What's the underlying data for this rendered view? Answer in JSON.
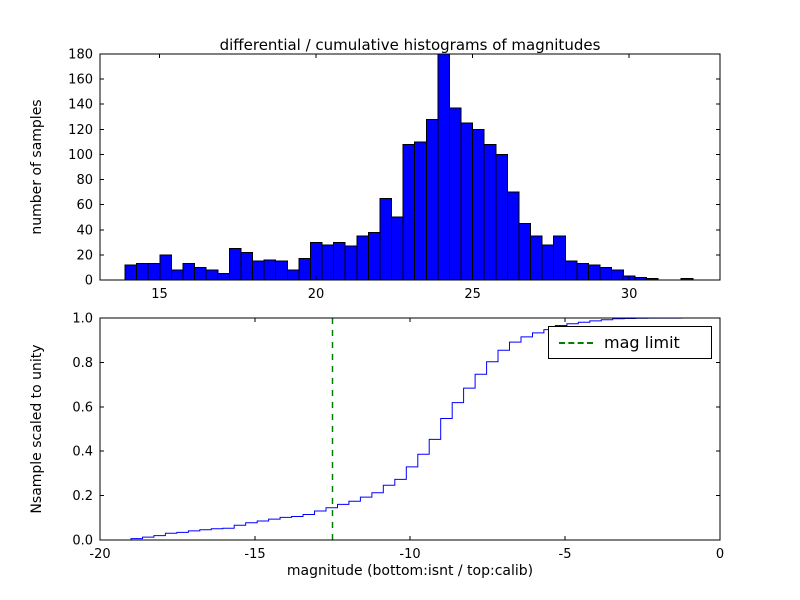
{
  "figure": {
    "title": "differential / cumulative histograms of magnitudes",
    "xlabel": "magnitude (bottom:isnt / top:calib)",
    "background": "#ffffff",
    "frame_color": "#000000"
  },
  "chart_data": [
    {
      "type": "bar",
      "name": "differential-histogram",
      "ylabel": "number of samples",
      "bar_color": "#0000ff",
      "bar_edge_color": "#000000",
      "xlim": [
        13.1,
        32.9
      ],
      "ylim": [
        0,
        180
      ],
      "xtick_values": [
        15,
        20,
        25,
        30
      ],
      "xtick_labels": [
        "15",
        "20",
        "25",
        "30"
      ],
      "ytick_values": [
        0,
        20,
        40,
        60,
        80,
        100,
        120,
        140,
        160,
        180
      ],
      "ytick_labels": [
        "0",
        "20",
        "40",
        "60",
        "80",
        "100",
        "120",
        "140",
        "160",
        "180"
      ],
      "bin_start": 13.9,
      "bin_width": 0.37,
      "counts": [
        12,
        13,
        13,
        20,
        8,
        13,
        10,
        8,
        5,
        25,
        22,
        15,
        16,
        15,
        8,
        17,
        30,
        28,
        30,
        27,
        35,
        38,
        65,
        50,
        108,
        110,
        128,
        180,
        137,
        125,
        120,
        108,
        100,
        70,
        45,
        35,
        28,
        35,
        15,
        13,
        12,
        10,
        8,
        3,
        2,
        1,
        0,
        0,
        1
      ]
    },
    {
      "type": "line",
      "name": "cumulative-histogram",
      "ylabel": "Nsample scaled to unity",
      "line_color": "#0000ff",
      "xlim": [
        -20,
        0
      ],
      "ylim": [
        0,
        1
      ],
      "xtick_values": [
        -20,
        -15,
        -10,
        -5,
        0
      ],
      "xtick_labels": [
        "-20",
        "-15",
        "-10",
        "-5",
        "0"
      ],
      "ytick_values": [
        0,
        0.2,
        0.4,
        0.6,
        0.8,
        1.0
      ],
      "ytick_labels": [
        "0.0",
        "0.2",
        "0.4",
        "0.6",
        "0.8",
        "1.0"
      ],
      "x_offset_from_top": -32.9,
      "mag_limit": {
        "x": -12.5,
        "color": "#008000",
        "style": "dashed",
        "label": "mag limit"
      },
      "legend": {
        "label": "mag limit",
        "position": "upper right"
      }
    }
  ]
}
